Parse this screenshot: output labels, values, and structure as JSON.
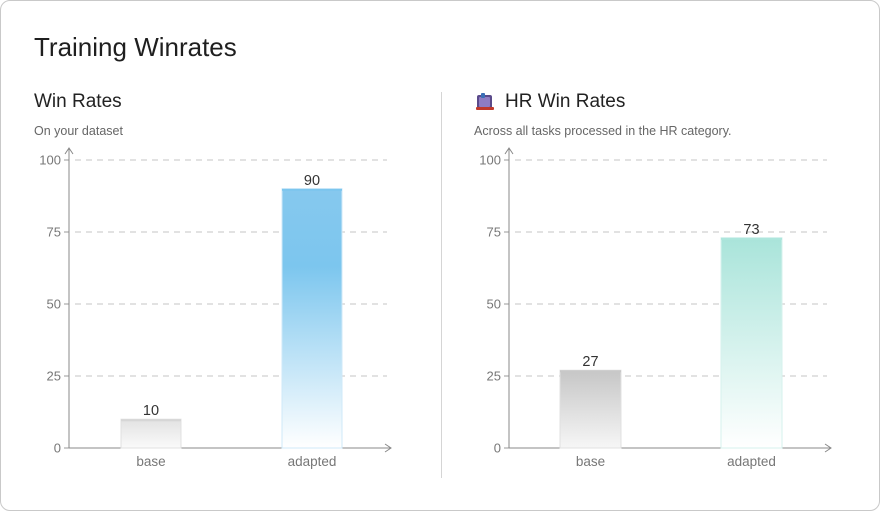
{
  "page": {
    "title": "Training Winrates"
  },
  "panels": [
    {
      "title": "Win Rates",
      "subtitle": "On your dataset",
      "icon": ""
    },
    {
      "title": "HR Win Rates",
      "subtitle": "Across all tasks processed in the HR category.",
      "icon": "hr-book-icon"
    }
  ],
  "chart_data": [
    {
      "type": "bar",
      "title": "Win Rates",
      "subtitle": "On your dataset",
      "categories": [
        "base",
        "adapted"
      ],
      "values": [
        10,
        90
      ],
      "ylim": [
        0,
        100
      ],
      "yticks": [
        0,
        25,
        50,
        75,
        100
      ],
      "grid": true,
      "colors": [
        "#d6d6d6",
        "#7cc6ee"
      ]
    },
    {
      "type": "bar",
      "title": "HR Win Rates",
      "subtitle": "Across all tasks processed in the HR category.",
      "categories": [
        "base",
        "adapted"
      ],
      "values": [
        27,
        73
      ],
      "ylim": [
        0,
        100
      ],
      "yticks": [
        0,
        25,
        50,
        75,
        100
      ],
      "grid": true,
      "colors": [
        "#c8c8c8",
        "#aee6dd"
      ]
    }
  ]
}
